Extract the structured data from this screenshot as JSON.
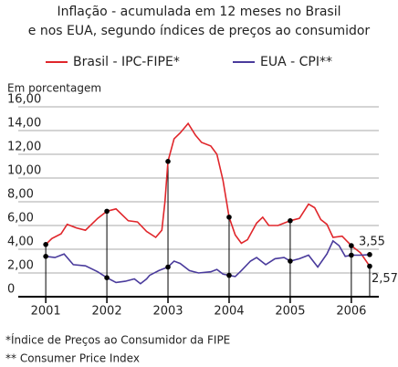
{
  "chart_data": {
    "type": "line",
    "title": [
      "Inflação - acumulada em 12 meses no Brasil",
      "e nos EUA, segundo índices de preços ao consumidor"
    ],
    "y_label": "Em porcentagem",
    "notes": [
      "*Índice de Preços ao Consumidor da FIPE",
      "** Consumer Price  Index"
    ],
    "xlim": [
      2000.55,
      2006.45
    ],
    "xticks": [
      2001,
      2002,
      2003,
      2004,
      2005,
      2006
    ],
    "ylim": [
      0,
      16
    ],
    "yticks": [
      0,
      {
        "value": 2,
        "label": "2,00"
      },
      {
        "value": 4,
        "label": "4,00"
      },
      {
        "value": 6,
        "label": "6,00"
      },
      {
        "value": 8,
        "label": "8,00"
      },
      {
        "value": 10,
        "label": "10,00"
      },
      {
        "value": 12,
        "label": "12,00"
      },
      {
        "value": 14,
        "label": "14,00"
      },
      {
        "value": 16,
        "label": "16,00"
      }
    ],
    "grid": true,
    "series": [
      {
        "name": "Brasil - IPC-FIPE*",
        "color": "#e0262b",
        "x": [
          2001.0,
          2001.1,
          2001.25,
          2001.35,
          2001.5,
          2001.65,
          2001.85,
          2002.0,
          2002.15,
          2002.35,
          2002.5,
          2002.65,
          2002.8,
          2002.9,
          2002.95,
          2003.0,
          2003.1,
          2003.2,
          2003.33,
          2003.45,
          2003.55,
          2003.7,
          2003.8,
          2003.9,
          2004.0,
          2004.1,
          2004.2,
          2004.3,
          2004.45,
          2004.55,
          2004.65,
          2004.8,
          2005.0,
          2005.15,
          2005.3,
          2005.4,
          2005.5,
          2005.6,
          2005.7,
          2005.85,
          2006.0,
          2006.15,
          2006.3
        ],
        "values": [
          4.4,
          4.9,
          5.3,
          6.1,
          5.8,
          5.6,
          6.6,
          7.2,
          7.4,
          6.4,
          6.3,
          5.5,
          5.0,
          5.6,
          8.0,
          11.4,
          13.3,
          13.8,
          14.6,
          13.6,
          13.0,
          12.7,
          12.0,
          9.8,
          6.7,
          5.2,
          4.5,
          4.8,
          6.2,
          6.7,
          6.0,
          6.0,
          6.4,
          6.6,
          7.8,
          7.5,
          6.5,
          6.1,
          5.0,
          5.1,
          4.3,
          3.7,
          2.57
        ],
        "value_labels": [
          null,
          null,
          null,
          null,
          null,
          null,
          null,
          null,
          null,
          null,
          null,
          null,
          null,
          null,
          null,
          null,
          null,
          null,
          null,
          null,
          null,
          null,
          null,
          null,
          null,
          null,
          null,
          null,
          null,
          null,
          null,
          null,
          null,
          null,
          null,
          null,
          null,
          null,
          null,
          null,
          null,
          null,
          "2,57"
        ]
      },
      {
        "name": "EUA - CPI**",
        "color": "#4a3b9c",
        "x": [
          2001.0,
          2001.15,
          2001.3,
          2001.45,
          2001.65,
          2001.85,
          2002.0,
          2002.15,
          2002.3,
          2002.45,
          2002.55,
          2002.65,
          2002.7,
          2002.85,
          2003.0,
          2003.1,
          2003.2,
          2003.35,
          2003.5,
          2003.7,
          2003.8,
          2003.9,
          2004.0,
          2004.1,
          2004.2,
          2004.35,
          2004.45,
          2004.6,
          2004.75,
          2004.9,
          2005.0,
          2005.15,
          2005.3,
          2005.45,
          2005.6,
          2005.7,
          2005.8,
          2005.9,
          2006.0,
          2006.15,
          2006.3
        ],
        "values": [
          3.4,
          3.3,
          3.6,
          2.7,
          2.6,
          2.1,
          1.6,
          1.2,
          1.3,
          1.5,
          1.1,
          1.5,
          1.8,
          2.2,
          2.5,
          3.0,
          2.8,
          2.2,
          2.0,
          2.1,
          2.3,
          1.9,
          1.8,
          1.7,
          2.2,
          3.0,
          3.3,
          2.7,
          3.2,
          3.3,
          3.0,
          3.2,
          3.5,
          2.5,
          3.6,
          4.7,
          4.3,
          3.4,
          3.5,
          3.5,
          3.55
        ],
        "value_labels": [
          null,
          null,
          null,
          null,
          null,
          null,
          null,
          null,
          null,
          null,
          null,
          null,
          null,
          null,
          null,
          null,
          null,
          null,
          null,
          null,
          null,
          null,
          null,
          null,
          null,
          null,
          null,
          null,
          null,
          null,
          null,
          null,
          null,
          null,
          null,
          null,
          null,
          null,
          null,
          null,
          "3,55"
        ]
      }
    ]
  }
}
